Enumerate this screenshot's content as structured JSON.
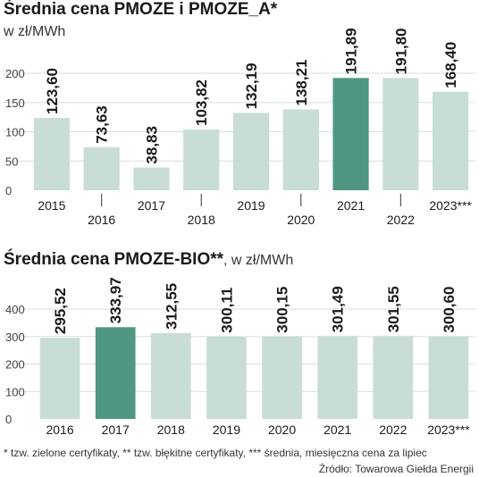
{
  "chart_data": [
    {
      "type": "bar",
      "title": "Średnia cena PMOZE i PMOZE_A*",
      "unit_label": "w zł/MWh",
      "categories": [
        "2015",
        "2016",
        "2017",
        "2018",
        "2019",
        "2020",
        "2021",
        "2022",
        "2023***"
      ],
      "values": [
        123.6,
        73.63,
        38.83,
        103.82,
        132.19,
        138.21,
        191.89,
        191.8,
        168.4
      ],
      "value_labels": [
        "123,60",
        "73,63",
        "38,83",
        "103,82",
        "132,19",
        "138,21",
        "191,89",
        "191,80",
        "168,40"
      ],
      "highlight_category": "2021",
      "ylim": [
        0,
        200
      ],
      "yticks": [
        0,
        50,
        100,
        150,
        200
      ],
      "grid": true,
      "colors": {
        "bar": "#c8ddd6",
        "highlight": "#4f9683",
        "grid": "#d7e0dd"
      }
    },
    {
      "type": "bar",
      "title": "Średnia cena PMOZE-BIO**",
      "unit_label": ", w zł/MWh",
      "categories": [
        "2016",
        "2017",
        "2018",
        "2019",
        "2020",
        "2021",
        "2022",
        "2023***"
      ],
      "values": [
        295.52,
        333.97,
        312.55,
        300.11,
        300.15,
        301.49,
        301.55,
        300.6
      ],
      "value_labels": [
        "295,52",
        "333,97",
        "312,55",
        "300,11",
        "300,15",
        "301,49",
        "301,55",
        "300,60"
      ],
      "highlight_category": "2017",
      "ylim": [
        0,
        400
      ],
      "yticks": [
        0,
        100,
        200,
        300,
        400
      ],
      "grid": true,
      "colors": {
        "bar": "#c8ddd6",
        "highlight": "#4f9683",
        "grid": "#d7e0dd"
      }
    }
  ],
  "footnote": "* tzw. zielone certyfikaty, ** tzw. błękitne certyfikaty, *** średnia, miesięczna cena za lipiec",
  "source": "Źródło: Towarowa Giełda Energii"
}
